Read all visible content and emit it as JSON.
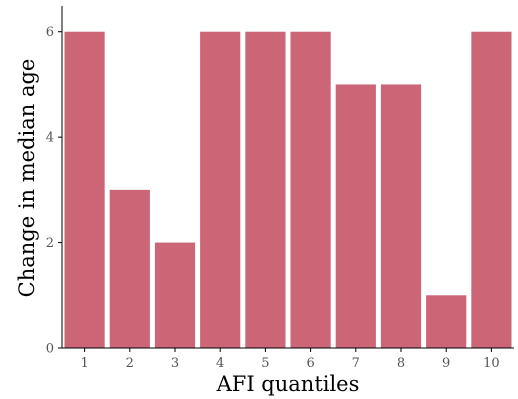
{
  "chart_data": {
    "type": "bar",
    "categories": [
      "1",
      "2",
      "3",
      "4",
      "5",
      "6",
      "7",
      "8",
      "9",
      "10"
    ],
    "values": [
      6,
      3,
      2,
      6,
      6,
      6,
      5,
      5,
      1,
      6
    ],
    "xlabel": "AFI quantiles",
    "ylabel": "Change in median age",
    "ylim": [
      0,
      6.45
    ],
    "yticks": [
      0,
      2,
      4,
      6
    ],
    "bar_color": "#cc6677",
    "grid": false,
    "legend": "none"
  }
}
